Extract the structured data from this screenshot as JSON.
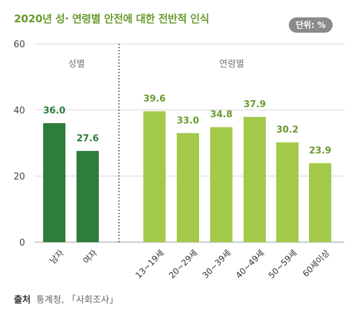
{
  "title": "2020년 성· 연령별 안전에 대한 전반적 인식",
  "unit_badge": "단위: %",
  "source": {
    "label": "출처",
    "text": "통계청, 「사회조사」"
  },
  "colors": {
    "gender": "#2e7d3a",
    "age": "#a3c94a",
    "title": "#6a9a2e",
    "value_gender": "#2e7d3a",
    "value_age": "#6a9a2e",
    "badge": "#8a8a8a"
  },
  "chart_data": {
    "type": "bar",
    "title": "2020년 성· 연령별 안전에 대한 전반적 인식",
    "ylabel": "",
    "ylim": [
      0,
      60
    ],
    "yticks": [
      0,
      20,
      40,
      60
    ],
    "grid": true,
    "groups": [
      {
        "name": "성별",
        "categories": [
          "남자",
          "여자"
        ],
        "values": [
          36.0,
          27.6
        ],
        "labels": [
          "36.0",
          "27.6"
        ]
      },
      {
        "name": "연령별",
        "categories": [
          "13~19세",
          "20~29세",
          "30~39세",
          "40~49세",
          "50~59세",
          "60세이상"
        ],
        "values": [
          39.6,
          33.0,
          34.8,
          37.9,
          30.2,
          23.9
        ],
        "labels": [
          "39.6",
          "33.0",
          "34.8",
          "37.9",
          "30.2",
          "23.9"
        ]
      }
    ]
  }
}
